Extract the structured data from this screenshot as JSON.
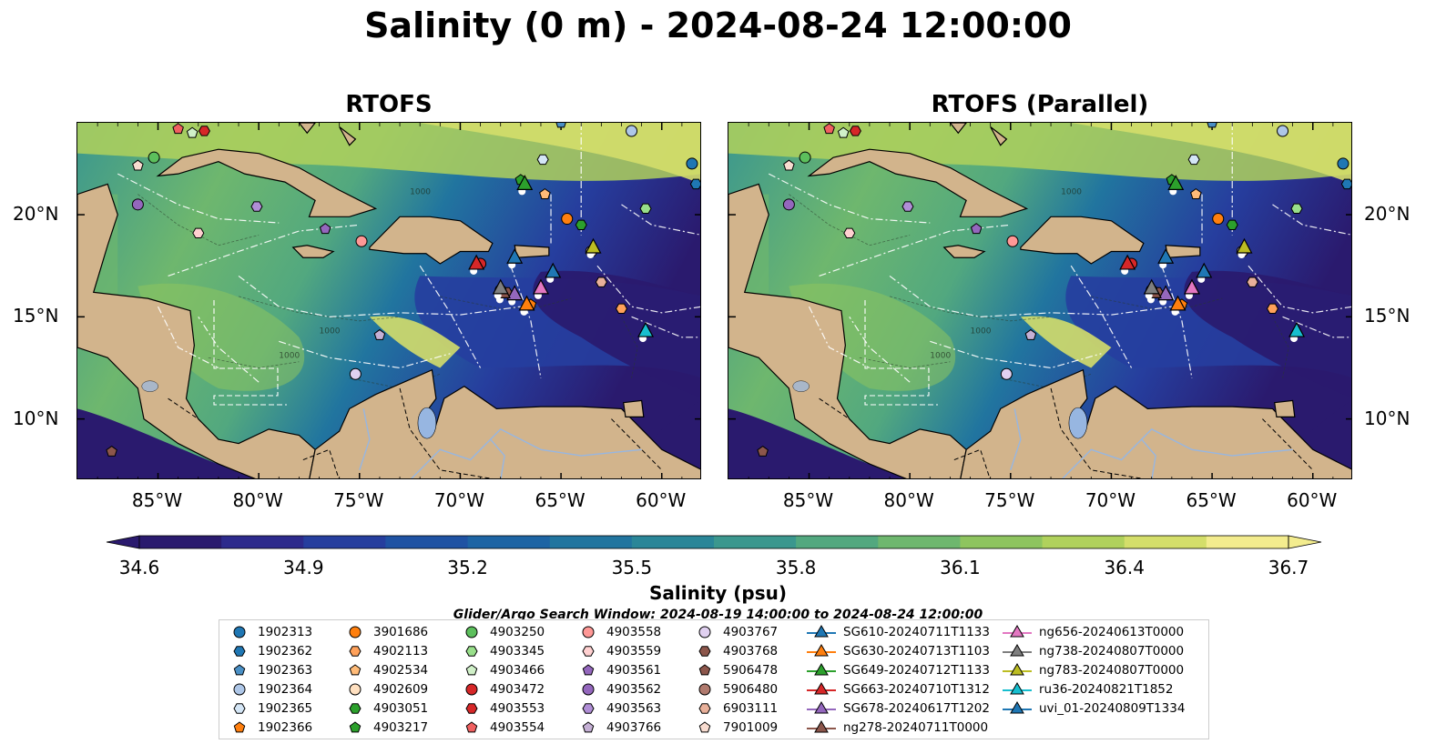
{
  "title": "Salinity (0 m) - 2024-08-24 12:00:00",
  "panels": [
    {
      "title": "RTOFS"
    },
    {
      "title": "RTOFS (Parallel)"
    }
  ],
  "axes": {
    "lon_ticks": [
      "85°W",
      "80°W",
      "75°W",
      "70°W",
      "65°W",
      "60°W"
    ],
    "lat_ticks": [
      "20°N",
      "15°N",
      "10°N"
    ],
    "lon_values": [
      -85,
      -80,
      -75,
      -70,
      -65,
      -60
    ],
    "lat_values": [
      20,
      15,
      10
    ],
    "lon_range": [
      -89,
      -58
    ],
    "lat_range": [
      7,
      24.5
    ]
  },
  "contour_labels": [
    "1000",
    "1000",
    "1000"
  ],
  "colorbar": {
    "label": "Salinity (psu)",
    "ticks": [
      "34.6",
      "34.9",
      "35.2",
      "35.5",
      "35.8",
      "36.1",
      "36.4",
      "36.7"
    ],
    "tick_values": [
      34.6,
      34.9,
      35.2,
      35.5,
      35.8,
      36.1,
      36.4,
      36.7
    ],
    "range": [
      34.6,
      36.7
    ],
    "extend": "both",
    "colors": [
      "#2a1a6e",
      "#2d2a8c",
      "#263e9e",
      "#1f52a3",
      "#1d64a4",
      "#21759f",
      "#2a8698",
      "#3b978e",
      "#52a87f",
      "#6eb76e",
      "#8ec45f",
      "#b0d15c",
      "#d4de6a",
      "#f3ec8e"
    ]
  },
  "map_colors": {
    "land": "#d2b48c",
    "lakes": "#97b6e1"
  },
  "search_window": "Glider/Argo Search Window: 2024-08-19 14:00:00 to 2024-08-24 12:00:00",
  "legend": {
    "argo": [
      {
        "label": "1902313",
        "color": "#1f77b4",
        "marker": "circle"
      },
      {
        "label": "1902362",
        "color": "#1f77b4",
        "marker": "hexagon"
      },
      {
        "label": "1902363",
        "color": "#4a90c6",
        "marker": "pentagon"
      },
      {
        "label": "1902364",
        "color": "#aec7e8",
        "marker": "circle"
      },
      {
        "label": "1902365",
        "color": "#d4e6f6",
        "marker": "hexagon"
      },
      {
        "label": "1902366",
        "color": "#ff7f0e",
        "marker": "pentagon"
      },
      {
        "label": "3901686",
        "color": "#ff7f0e",
        "marker": "circle"
      },
      {
        "label": "4902113",
        "color": "#ffa15a",
        "marker": "hexagon"
      },
      {
        "label": "4902534",
        "color": "#ffbb78",
        "marker": "pentagon"
      },
      {
        "label": "4902609",
        "color": "#ffe0c0",
        "marker": "circle"
      },
      {
        "label": "4903051",
        "color": "#2ca02c",
        "marker": "hexagon"
      },
      {
        "label": "4903217",
        "color": "#2ca02c",
        "marker": "pentagon"
      },
      {
        "label": "4903250",
        "color": "#5cbf5c",
        "marker": "circle"
      },
      {
        "label": "4903345",
        "color": "#98df8a",
        "marker": "hexagon"
      },
      {
        "label": "4903466",
        "color": "#d0f0c8",
        "marker": "pentagon"
      },
      {
        "label": "4903472",
        "color": "#d62728",
        "marker": "circle"
      },
      {
        "label": "4903553",
        "color": "#d62728",
        "marker": "hexagon"
      },
      {
        "label": "4903554",
        "color": "#f06060",
        "marker": "pentagon"
      },
      {
        "label": "4903558",
        "color": "#ff9896",
        "marker": "circle"
      },
      {
        "label": "4903559",
        "color": "#ffd0d0",
        "marker": "hexagon"
      },
      {
        "label": "4903561",
        "color": "#9467bd",
        "marker": "pentagon"
      },
      {
        "label": "4903562",
        "color": "#9467bd",
        "marker": "circle"
      },
      {
        "label": "4903563",
        "color": "#b08ed6",
        "marker": "hexagon"
      },
      {
        "label": "4903766",
        "color": "#c5b0d5",
        "marker": "pentagon"
      },
      {
        "label": "4903767",
        "color": "#e0d0f0",
        "marker": "circle"
      },
      {
        "label": "4903768",
        "color": "#8c564b",
        "marker": "hexagon"
      },
      {
        "label": "5906478",
        "color": "#8c564b",
        "marker": "pentagon"
      },
      {
        "label": "5906480",
        "color": "#b07a6e",
        "marker": "circle"
      },
      {
        "label": "6903111",
        "color": "#e8b09a",
        "marker": "hexagon"
      },
      {
        "label": "7901009",
        "color": "#f8dcd0",
        "marker": "pentagon"
      }
    ],
    "gliders": [
      {
        "label": "SG610-20240711T1133",
        "color": "#1f77b4"
      },
      {
        "label": "SG630-20240713T1103",
        "color": "#ff7f0e"
      },
      {
        "label": "SG649-20240712T1133",
        "color": "#2ca02c"
      },
      {
        "label": "SG663-20240710T1312",
        "color": "#d62728"
      },
      {
        "label": "SG678-20240617T1202",
        "color": "#9467bd"
      },
      {
        "label": "ng278-20240711T0000",
        "color": "#8c564b"
      },
      {
        "label": "ng656-20240613T0000",
        "color": "#e377c2"
      },
      {
        "label": "ng738-20240807T0000",
        "color": "#7f7f7f"
      },
      {
        "label": "ng783-20240807T0000",
        "color": "#bcbd22"
      },
      {
        "label": "ru36-20240821T1852",
        "color": "#17becf"
      },
      {
        "label": "uvi_01-20240809T1334",
        "color": "#1f77b4"
      }
    ]
  }
}
